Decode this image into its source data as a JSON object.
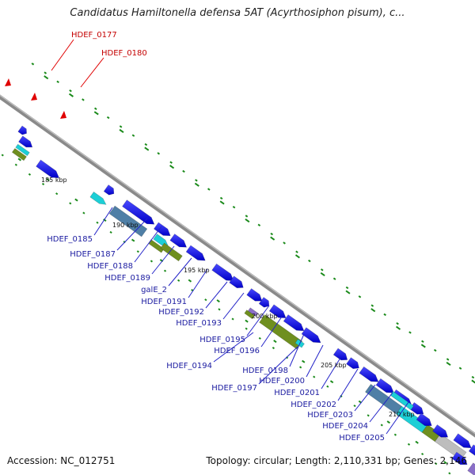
{
  "title": "Candidatus Hamiltonella defensa 5AT (Acyrthosiphon pisum), c...",
  "footer": {
    "accession": "Accession: NC_012751",
    "summary": "Topology: circular; Length: 2,110,331 bp; Genes: 2,146"
  },
  "ticks": [
    {
      "label": "185 kbp"
    },
    {
      "label": "190 kbp"
    },
    {
      "label": "195 kbp"
    },
    {
      "label": "200 kbp"
    },
    {
      "label": "205 kbp"
    },
    {
      "label": "210 kbp"
    }
  ],
  "labels": [
    {
      "text": "HDEF_0177",
      "color": "red"
    },
    {
      "text": "HDEF_0180",
      "color": "red"
    },
    {
      "text": "HDEF_0185"
    },
    {
      "text": "HDEF_0187"
    },
    {
      "text": "HDEF_0188"
    },
    {
      "text": "HDEF_0189"
    },
    {
      "text": "galE_2"
    },
    {
      "text": "HDEF_0191"
    },
    {
      "text": "HDEF_0192"
    },
    {
      "text": "HDEF_0193"
    },
    {
      "text": "HDEF_0195"
    },
    {
      "text": "HDEF_0196"
    },
    {
      "text": "HDEF_0194"
    },
    {
      "text": "HDEF_0198"
    },
    {
      "text": "HDEF_0200"
    },
    {
      "text": "HDEF_0197"
    },
    {
      "text": "HDEF_0201"
    },
    {
      "text": "HDEF_0202"
    },
    {
      "text": "HDEF_0203"
    },
    {
      "text": "HDEF_0204"
    },
    {
      "text": "HDEF_0205"
    }
  ],
  "colors": {
    "blue": "#1010ee",
    "cyan": "#1ccfd6",
    "olive": "#6f8f1f",
    "steel": "#4f7fa6",
    "purple": "#8a6fc8",
    "gray": "#bdbdbd",
    "pink": "#ee1c9a",
    "red": "#e00000",
    "green": "#1a8a1a",
    "backbone": "#8a8a8a"
  }
}
